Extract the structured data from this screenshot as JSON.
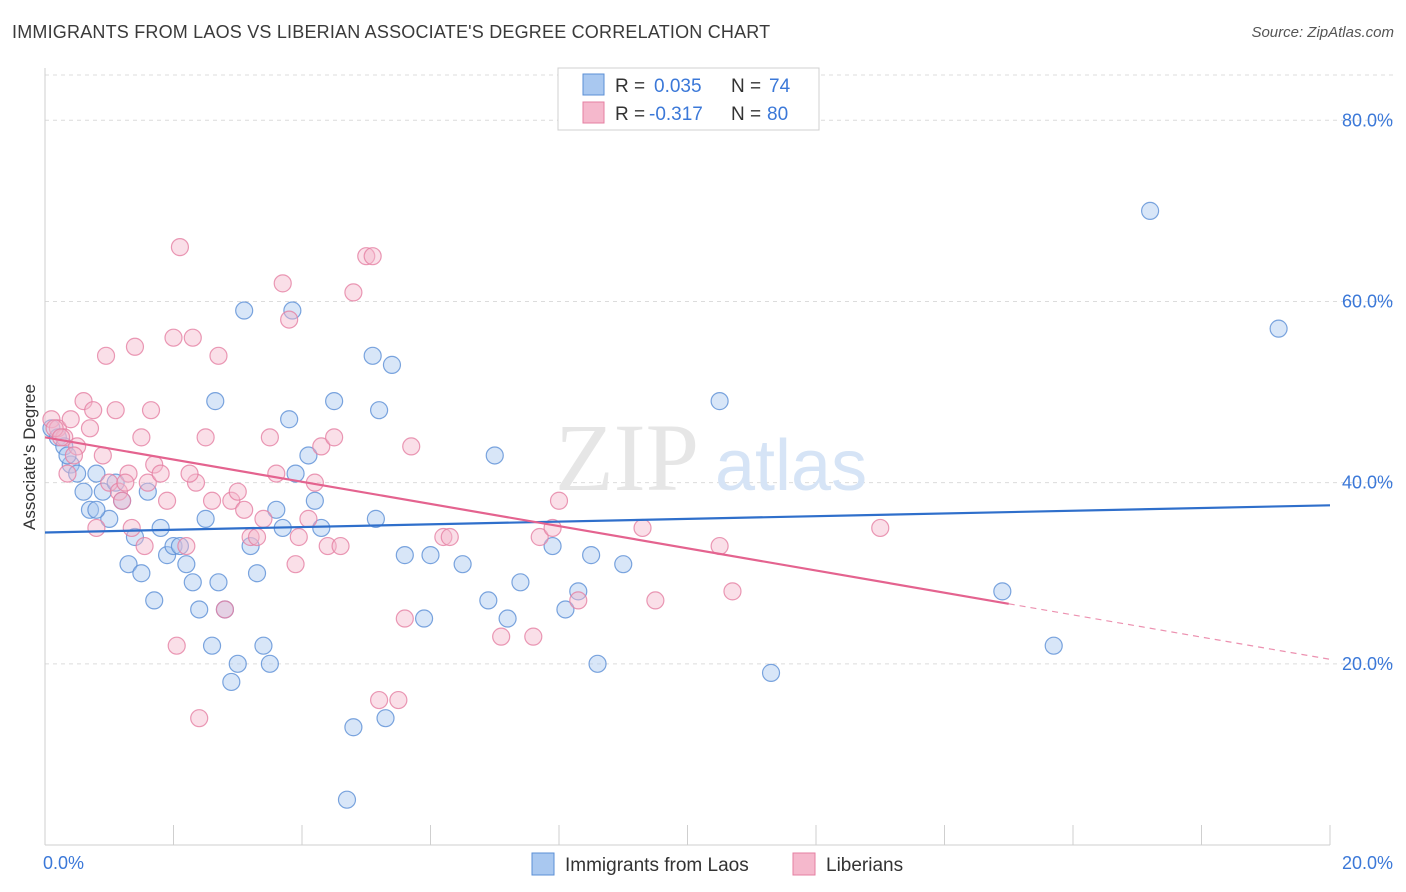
{
  "header": {
    "title": "IMMIGRANTS FROM LAOS VS LIBERIAN ASSOCIATE'S DEGREE CORRELATION CHART",
    "source": "Source: ZipAtlas.com"
  },
  "watermark": "ZIPatlas",
  "colors": {
    "laos_fill": "#a9c8f0",
    "laos_stroke": "#5b8fd6",
    "laos_line": "#2f6fcb",
    "liberia_fill": "#f5b8cc",
    "liberia_stroke": "#e57fa2",
    "liberia_line": "#e4638f",
    "tick_text": "#3b78d8",
    "grid": "#dcdcdc"
  },
  "legend": {
    "rows": [
      {
        "r_label": "R =",
        "r_value": "0.035",
        "n_label": "N =",
        "n_value": "74"
      },
      {
        "r_label": "R =",
        "r_value": "-0.317",
        "n_label": "N =",
        "n_value": "80"
      }
    ]
  },
  "chart_data": {
    "type": "scatter",
    "xlabel": "",
    "ylabel": "Associate's Degree",
    "xlim": [
      0,
      20
    ],
    "ylim": [
      0,
      85
    ],
    "x_ticks": [
      "0.0%",
      "20.0%"
    ],
    "y_ticks": [
      "20.0%",
      "40.0%",
      "60.0%",
      "80.0%"
    ],
    "y_tick_values": [
      20,
      40,
      60,
      80
    ],
    "grid": true,
    "legend_position": "top-center",
    "series": [
      {
        "name": "Immigrants from Laos",
        "trend": {
          "x": [
            0,
            20
          ],
          "y": [
            34.5,
            37.5
          ],
          "dashed_from": null
        },
        "points": [
          [
            0.1,
            46
          ],
          [
            0.2,
            45
          ],
          [
            0.3,
            44
          ],
          [
            0.4,
            42
          ],
          [
            0.5,
            41
          ],
          [
            0.6,
            39
          ],
          [
            0.7,
            37
          ],
          [
            0.8,
            41
          ],
          [
            0.9,
            39
          ],
          [
            1.0,
            36
          ],
          [
            1.1,
            40
          ],
          [
            1.2,
            38
          ],
          [
            1.3,
            31
          ],
          [
            1.4,
            34
          ],
          [
            1.5,
            30
          ],
          [
            1.6,
            39
          ],
          [
            1.7,
            27
          ],
          [
            1.8,
            35
          ],
          [
            1.9,
            32
          ],
          [
            2.0,
            33
          ],
          [
            2.1,
            33
          ],
          [
            2.2,
            31
          ],
          [
            2.3,
            29
          ],
          [
            2.4,
            26
          ],
          [
            2.5,
            36
          ],
          [
            2.6,
            22
          ],
          [
            2.65,
            49
          ],
          [
            2.7,
            29
          ],
          [
            2.8,
            26
          ],
          [
            2.9,
            18
          ],
          [
            3.0,
            20
          ],
          [
            3.1,
            59
          ],
          [
            3.2,
            33
          ],
          [
            3.3,
            30
          ],
          [
            3.4,
            22
          ],
          [
            3.5,
            20
          ],
          [
            3.6,
            37
          ],
          [
            3.7,
            35
          ],
          [
            3.8,
            47
          ],
          [
            3.85,
            59
          ],
          [
            3.9,
            41
          ],
          [
            4.1,
            43
          ],
          [
            4.2,
            38
          ],
          [
            4.3,
            35
          ],
          [
            4.5,
            49
          ],
          [
            4.7,
            5
          ],
          [
            4.8,
            13
          ],
          [
            5.1,
            54
          ],
          [
            5.15,
            36
          ],
          [
            5.2,
            48
          ],
          [
            5.3,
            14
          ],
          [
            5.4,
            53
          ],
          [
            5.6,
            32
          ],
          [
            5.9,
            25
          ],
          [
            6.0,
            32
          ],
          [
            6.5,
            31
          ],
          [
            6.9,
            27
          ],
          [
            7.0,
            43
          ],
          [
            7.2,
            25
          ],
          [
            7.4,
            29
          ],
          [
            7.9,
            33
          ],
          [
            8.1,
            26
          ],
          [
            8.3,
            28
          ],
          [
            8.5,
            32
          ],
          [
            8.6,
            20
          ],
          [
            9.0,
            31
          ],
          [
            10.5,
            49
          ],
          [
            11.3,
            19
          ],
          [
            14.9,
            28
          ],
          [
            15.7,
            22
          ],
          [
            17.2,
            70
          ],
          [
            19.2,
            57
          ],
          [
            0.35,
            43
          ],
          [
            0.8,
            37
          ]
        ]
      },
      {
        "name": "Liberians",
        "trend": {
          "x": [
            0,
            20
          ],
          "y": [
            45,
            20.5
          ],
          "dashed_from": 15
        },
        "points": [
          [
            0.1,
            47
          ],
          [
            0.2,
            46
          ],
          [
            0.3,
            45
          ],
          [
            0.35,
            41
          ],
          [
            0.4,
            47
          ],
          [
            0.5,
            44
          ],
          [
            0.6,
            49
          ],
          [
            0.7,
            46
          ],
          [
            0.75,
            48
          ],
          [
            0.8,
            35
          ],
          [
            0.9,
            43
          ],
          [
            0.95,
            54
          ],
          [
            1.0,
            40
          ],
          [
            1.1,
            48
          ],
          [
            1.15,
            39
          ],
          [
            1.2,
            38
          ],
          [
            1.3,
            41
          ],
          [
            1.35,
            35
          ],
          [
            1.4,
            55
          ],
          [
            1.5,
            45
          ],
          [
            1.6,
            40
          ],
          [
            1.65,
            48
          ],
          [
            1.7,
            42
          ],
          [
            1.8,
            41
          ],
          [
            1.9,
            38
          ],
          [
            2.0,
            56
          ],
          [
            2.05,
            22
          ],
          [
            2.1,
            66
          ],
          [
            2.2,
            33
          ],
          [
            2.3,
            56
          ],
          [
            2.35,
            40
          ],
          [
            2.4,
            14
          ],
          [
            2.5,
            45
          ],
          [
            2.6,
            38
          ],
          [
            2.7,
            54
          ],
          [
            2.8,
            26
          ],
          [
            2.9,
            38
          ],
          [
            3.0,
            39
          ],
          [
            3.1,
            37
          ],
          [
            3.2,
            34
          ],
          [
            3.3,
            34
          ],
          [
            3.5,
            45
          ],
          [
            3.6,
            41
          ],
          [
            3.7,
            62
          ],
          [
            3.8,
            58
          ],
          [
            3.9,
            31
          ],
          [
            3.95,
            34
          ],
          [
            4.1,
            36
          ],
          [
            4.2,
            40
          ],
          [
            4.3,
            44
          ],
          [
            4.4,
            33
          ],
          [
            4.5,
            45
          ],
          [
            4.6,
            33
          ],
          [
            4.8,
            61
          ],
          [
            5.0,
            65
          ],
          [
            5.1,
            65
          ],
          [
            5.2,
            16
          ],
          [
            5.5,
            16
          ],
          [
            5.6,
            25
          ],
          [
            5.7,
            44
          ],
          [
            6.2,
            34
          ],
          [
            6.3,
            34
          ],
          [
            7.1,
            23
          ],
          [
            7.6,
            23
          ],
          [
            7.7,
            34
          ],
          [
            7.9,
            35
          ],
          [
            8.0,
            38
          ],
          [
            8.3,
            27
          ],
          [
            9.3,
            35
          ],
          [
            9.5,
            27
          ],
          [
            10.5,
            33
          ],
          [
            10.7,
            28
          ],
          [
            13.0,
            35
          ],
          [
            0.15,
            46
          ],
          [
            0.25,
            45
          ],
          [
            0.45,
            43
          ],
          [
            1.25,
            40
          ],
          [
            1.55,
            33
          ],
          [
            2.25,
            41
          ],
          [
            3.4,
            36
          ]
        ]
      }
    ]
  },
  "bottom_legend": {
    "items": [
      {
        "label": "Immigrants from Laos"
      },
      {
        "label": "Liberians"
      }
    ]
  }
}
